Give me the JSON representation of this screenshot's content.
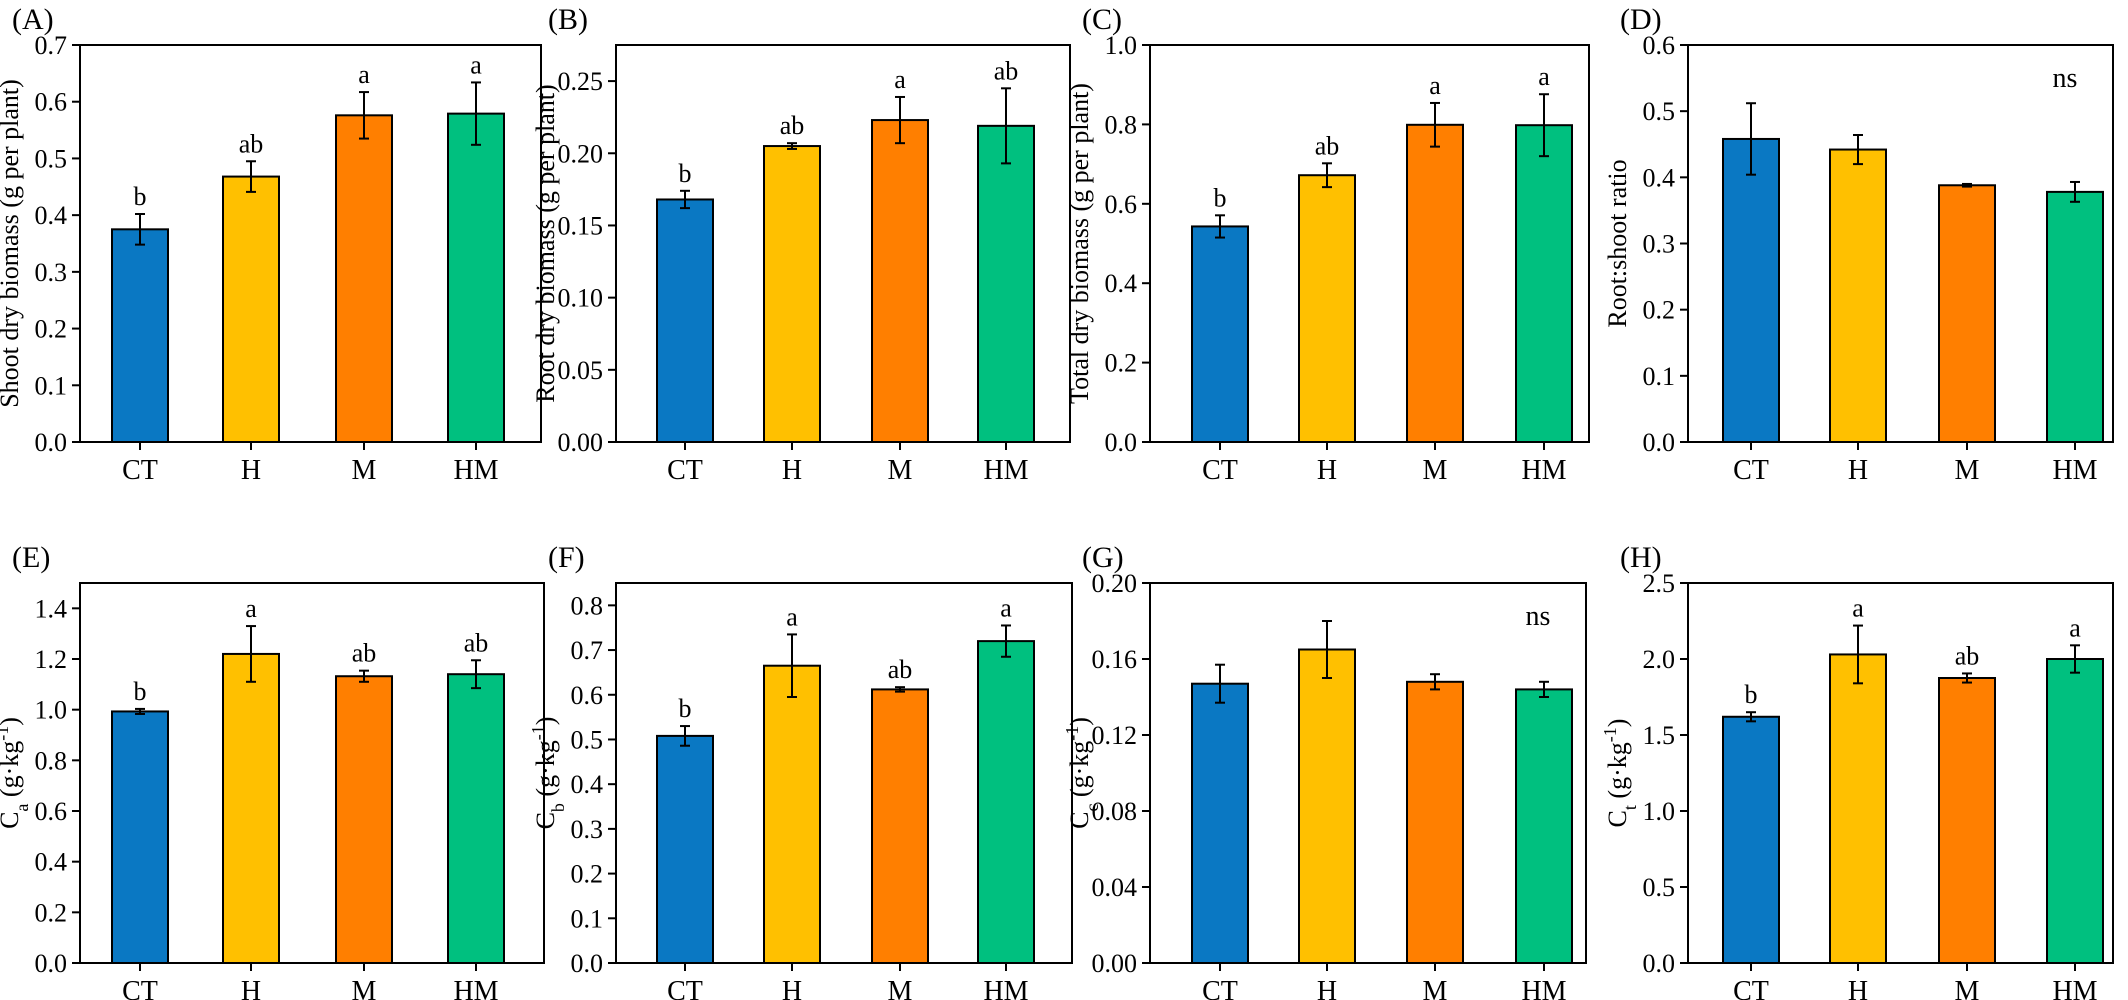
{
  "colors": {
    "CT": "#0a78c3",
    "H": "#ffc000",
    "M": "#ff7f00",
    "HM": "#00c07f"
  },
  "chart_data": [
    {
      "type": "bar",
      "panel": "(A)",
      "ylabel": "Shoot dry biomass (g per plant)",
      "categories": [
        "CT",
        "H",
        "M",
        "HM"
      ],
      "values": [
        0.375,
        0.468,
        0.576,
        0.579
      ],
      "errors": [
        0.027,
        0.027,
        0.041,
        0.055
      ],
      "letters": [
        "b",
        "ab",
        "a",
        "a"
      ],
      "ylim": [
        0,
        0.7
      ],
      "yticks": [
        "0.0",
        "0.1",
        "0.2",
        "0.3",
        "0.4",
        "0.5",
        "0.6",
        "0.7"
      ],
      "note": ""
    },
    {
      "type": "bar",
      "panel": "(B)",
      "ylabel": "Root dry biomass (g per plant)",
      "categories": [
        "CT",
        "H",
        "M",
        "HM"
      ],
      "values": [
        0.168,
        0.205,
        0.223,
        0.219
      ],
      "errors": [
        0.006,
        0.002,
        0.016,
        0.026
      ],
      "letters": [
        "b",
        "ab",
        "a",
        "ab"
      ],
      "ylim": [
        0,
        0.275
      ],
      "yticks": [
        "0.00",
        "0.05",
        "0.10",
        "0.15",
        "0.20",
        "0.25"
      ],
      "note": ""
    },
    {
      "type": "bar",
      "panel": "(C)",
      "ylabel": "Total dry biomass (g per plant)",
      "categories": [
        "CT",
        "H",
        "M",
        "HM"
      ],
      "values": [
        0.543,
        0.672,
        0.799,
        0.798
      ],
      "errors": [
        0.028,
        0.03,
        0.055,
        0.078
      ],
      "letters": [
        "b",
        "ab",
        "a",
        "a"
      ],
      "ylim": [
        0,
        1.0
      ],
      "yticks": [
        "0.0",
        "0.2",
        "0.4",
        "0.6",
        "0.8",
        "1.0"
      ],
      "note": ""
    },
    {
      "type": "bar",
      "panel": "(D)",
      "ylabel": "Root:shoot ratio",
      "categories": [
        "CT",
        "H",
        "M",
        "HM"
      ],
      "values": [
        0.458,
        0.442,
        0.388,
        0.378
      ],
      "errors": [
        0.054,
        0.022,
        0.002,
        0.015
      ],
      "letters": [
        "",
        "",
        "",
        ""
      ],
      "ylim": [
        0,
        0.6
      ],
      "yticks": [
        "0.0",
        "0.1",
        "0.2",
        "0.3",
        "0.4",
        "0.5",
        "0.6"
      ],
      "note": "ns"
    },
    {
      "type": "bar",
      "panel": "(E)",
      "ylabel": "Ca (g·kg-1)",
      "ylabel_base": "C",
      "ylabel_sub": "a",
      "ylabel_tail": " (g·kg",
      "ylabel_sup": "-1",
      "ylabel_close": ")",
      "categories": [
        "CT",
        "H",
        "M",
        "HM"
      ],
      "values": [
        0.993,
        1.22,
        1.132,
        1.14
      ],
      "errors": [
        0.01,
        0.11,
        0.022,
        0.055
      ],
      "letters": [
        "b",
        "a",
        "ab",
        "ab"
      ],
      "ylim": [
        0,
        1.5
      ],
      "yticks": [
        "0.0",
        "0.2",
        "0.4",
        "0.6",
        "0.8",
        "1.0",
        "1.2",
        "1.4"
      ],
      "note": ""
    },
    {
      "type": "bar",
      "panel": "(F)",
      "ylabel": "Cb (g·kg-1)",
      "ylabel_base": "C",
      "ylabel_sub": "b",
      "ylabel_tail": " (g·kg",
      "ylabel_sup": "-1",
      "ylabel_close": ")",
      "categories": [
        "CT",
        "H",
        "M",
        "HM"
      ],
      "values": [
        0.508,
        0.665,
        0.612,
        0.72
      ],
      "errors": [
        0.022,
        0.07,
        0.005,
        0.035
      ],
      "letters": [
        "b",
        "a",
        "ab",
        "a"
      ],
      "ylim": [
        0,
        0.85
      ],
      "yticks": [
        "0.0",
        "0.1",
        "0.2",
        "0.3",
        "0.4",
        "0.5",
        "0.6",
        "0.7",
        "0.8"
      ],
      "note": ""
    },
    {
      "type": "bar",
      "panel": "(G)",
      "ylabel": "Cc (g·kg-1)",
      "ylabel_base": "C",
      "ylabel_sub": "c",
      "ylabel_tail": " (g·kg",
      "ylabel_sup": "-1",
      "ylabel_close": ")",
      "categories": [
        "CT",
        "H",
        "M",
        "HM"
      ],
      "values": [
        0.147,
        0.165,
        0.148,
        0.144
      ],
      "errors": [
        0.01,
        0.015,
        0.004,
        0.004
      ],
      "letters": [
        "",
        "",
        "",
        ""
      ],
      "ylim": [
        0,
        0.2
      ],
      "yticks": [
        "0.00",
        "0.04",
        "0.08",
        "0.12",
        "0.16",
        "0.20"
      ],
      "note": "ns"
    },
    {
      "type": "bar",
      "panel": "(H)",
      "ylabel": "Ct (g·kg-1)",
      "ylabel_base": "C",
      "ylabel_sub": "t",
      "ylabel_tail": " (g·kg",
      "ylabel_sup": "-1",
      "ylabel_close": ")",
      "categories": [
        "CT",
        "H",
        "M",
        "HM"
      ],
      "values": [
        1.62,
        2.03,
        1.875,
        2.0
      ],
      "errors": [
        0.03,
        0.19,
        0.03,
        0.09
      ],
      "letters": [
        "b",
        "a",
        "ab",
        "a"
      ],
      "ylim": [
        0,
        2.5
      ],
      "yticks": [
        "0.0",
        "0.5",
        "1.0",
        "1.5",
        "2.0",
        "2.5"
      ],
      "note": ""
    }
  ]
}
